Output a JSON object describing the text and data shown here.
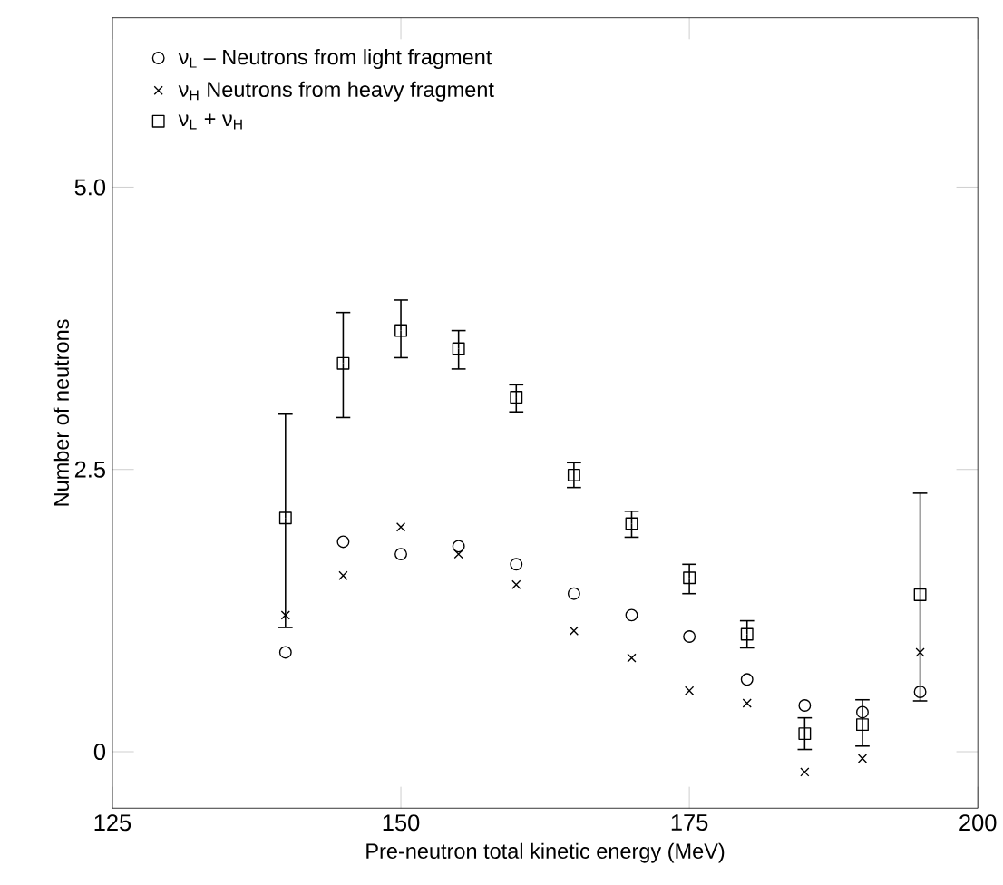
{
  "chart_data": {
    "type": "scatter",
    "xlabel": "Pre-neutron total kinetic energy  (MeV)",
    "ylabel": "Number of neutrons",
    "x": [
      140,
      145,
      150,
      155,
      160,
      165,
      170,
      175,
      180,
      185,
      190,
      195
    ],
    "xlim": [
      125,
      200
    ],
    "xticks": [
      125,
      150,
      175,
      200
    ],
    "ylim": [
      -0.5,
      6.5
    ],
    "yticks": [
      0,
      2.5,
      {
        "value": 5,
        "label": "5.0"
      }
    ],
    "legend": "top left",
    "grid": false,
    "series": [
      {
        "name": "ν$_{L}$ – Neutrons from light fragment",
        "color": "#000000",
        "marker": "circle",
        "values": [
          0.88,
          1.86,
          1.75,
          1.82,
          1.66,
          1.4,
          1.21,
          1.02,
          0.64,
          0.41,
          0.35,
          0.53
        ]
      },
      {
        "name": "ν$_{H}$   Neutrons from heavy fragment",
        "color": "#000000",
        "marker": "cross",
        "values": [
          1.21,
          1.56,
          1.99,
          1.75,
          1.48,
          1.07,
          0.83,
          0.54,
          0.43,
          -0.18,
          -0.06,
          0.88
        ]
      },
      {
        "name": "ν$_{L}$ + ν$_{H}$",
        "color": "#000000",
        "marker": "square",
        "values": [
          2.07,
          3.44,
          3.73,
          3.57,
          3.14,
          2.45,
          2.02,
          1.54,
          1.04,
          0.16,
          0.24,
          1.39
        ],
        "errors": [
          [
            1.1,
            2.99
          ],
          [
            2.96,
            3.89
          ],
          [
            3.49,
            4.0
          ],
          [
            3.39,
            3.73
          ],
          [
            3.01,
            3.25
          ],
          [
            2.34,
            2.56
          ],
          [
            1.9,
            2.13
          ],
          [
            1.4,
            1.66
          ],
          [
            0.92,
            1.16
          ],
          [
            0.02,
            0.3
          ],
          [
            0.05,
            0.46
          ],
          [
            0.45,
            2.29
          ]
        ]
      }
    ]
  }
}
